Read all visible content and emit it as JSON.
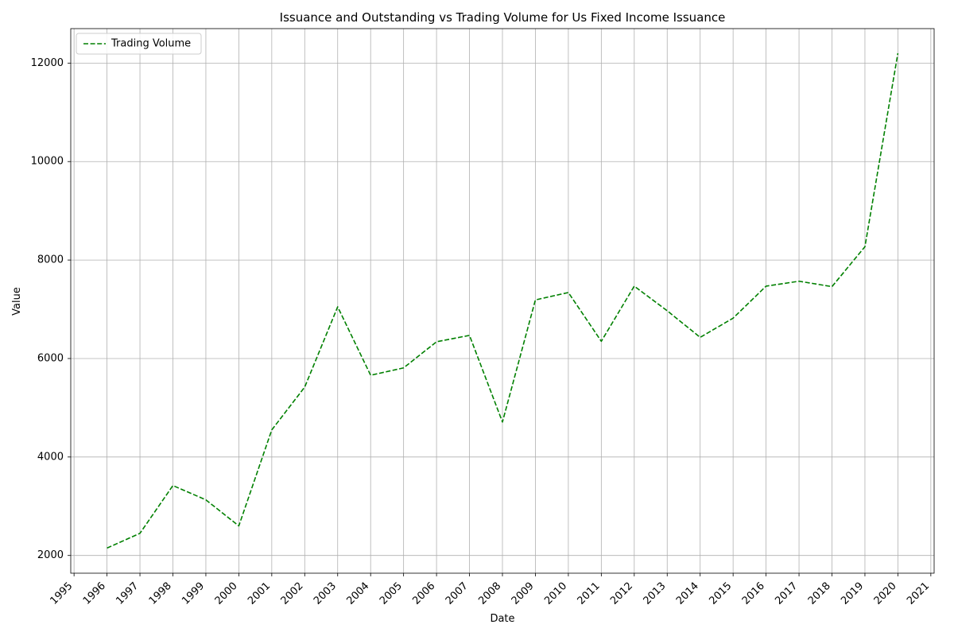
{
  "chart_data": {
    "type": "line",
    "title": "Issuance and Outstanding vs Trading Volume for Us Fixed Income Issuance",
    "xlabel": "Date",
    "ylabel": "Value",
    "x_ticks": [
      "1995",
      "1996",
      "1997",
      "1998",
      "1999",
      "2000",
      "2001",
      "2002",
      "2003",
      "2004",
      "2005",
      "2006",
      "2007",
      "2008",
      "2009",
      "2010",
      "2011",
      "2012",
      "2013",
      "2014",
      "2015",
      "2016",
      "2017",
      "2018",
      "2019",
      "2020",
      "2021"
    ],
    "y_ticks": [
      2000,
      4000,
      6000,
      8000,
      10000,
      12000
    ],
    "xlim": [
      1994.9,
      2021.1
    ],
    "ylim": [
      1640,
      12700
    ],
    "grid": true,
    "legend_position": "upper-left",
    "series": [
      {
        "name": "Trading Volume",
        "color": "#008000",
        "line_style": "dashed",
        "x": [
          1996,
          1997,
          1998,
          1999,
          2000,
          2001,
          2002,
          2003,
          2004,
          2005,
          2006,
          2007,
          2008,
          2009,
          2010,
          2011,
          2012,
          2013,
          2014,
          2015,
          2016,
          2017,
          2018,
          2019,
          2020
        ],
        "values": [
          2150,
          2450,
          3420,
          3130,
          2600,
          4550,
          5420,
          7050,
          5660,
          5810,
          6340,
          6470,
          4710,
          7190,
          7340,
          6350,
          7470,
          6970,
          6430,
          6820,
          7470,
          7570,
          7460,
          8270,
          12200
        ]
      }
    ]
  }
}
